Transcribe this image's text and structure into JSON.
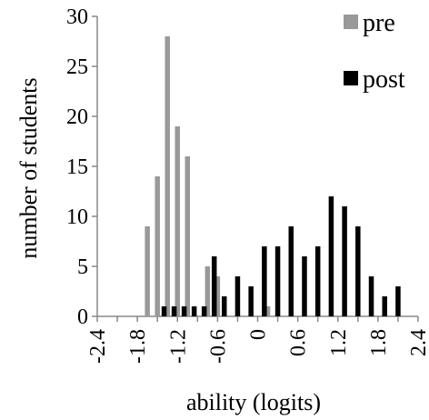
{
  "chart_data": {
    "type": "bar",
    "xlabel": "ability (logits)",
    "ylabel": "number of students",
    "ylim": [
      0,
      30
    ],
    "yticks": [
      "0",
      "5",
      "10",
      "15",
      "20",
      "25",
      "30"
    ],
    "xlim": [
      -2.4,
      2.4
    ],
    "xticks": [
      "-2.4",
      "-1.8",
      "-1.2",
      "-0.6",
      "0",
      "0.6",
      "1.2",
      "1.8",
      "2.4"
    ],
    "grid": false,
    "legend_position": "top-right",
    "series": [
      {
        "name": "pre",
        "color": "#999999",
        "points": [
          {
            "x": -1.65,
            "y": 9
          },
          {
            "x": -1.5,
            "y": 14
          },
          {
            "x": -1.35,
            "y": 28
          },
          {
            "x": -1.2,
            "y": 19
          },
          {
            "x": -1.05,
            "y": 16
          },
          {
            "x": -0.75,
            "y": 5
          },
          {
            "x": -0.6,
            "y": 4
          },
          {
            "x": 0.15,
            "y": 1
          }
        ]
      },
      {
        "name": "post",
        "color": "#000000",
        "points": [
          {
            "x": -1.4,
            "y": 1
          },
          {
            "x": -1.25,
            "y": 1
          },
          {
            "x": -1.1,
            "y": 1
          },
          {
            "x": -0.95,
            "y": 1
          },
          {
            "x": -0.8,
            "y": 1
          },
          {
            "x": -0.65,
            "y": 6
          },
          {
            "x": -0.5,
            "y": 2
          },
          {
            "x": -0.3,
            "y": 4
          },
          {
            "x": -0.1,
            "y": 3
          },
          {
            "x": 0.1,
            "y": 7
          },
          {
            "x": 0.3,
            "y": 7
          },
          {
            "x": 0.5,
            "y": 9
          },
          {
            "x": 0.7,
            "y": 6
          },
          {
            "x": 0.9,
            "y": 7
          },
          {
            "x": 1.1,
            "y": 12
          },
          {
            "x": 1.3,
            "y": 11
          },
          {
            "x": 1.5,
            "y": 9
          },
          {
            "x": 1.7,
            "y": 4
          },
          {
            "x": 1.9,
            "y": 2
          },
          {
            "x": 2.1,
            "y": 3
          }
        ]
      }
    ]
  }
}
